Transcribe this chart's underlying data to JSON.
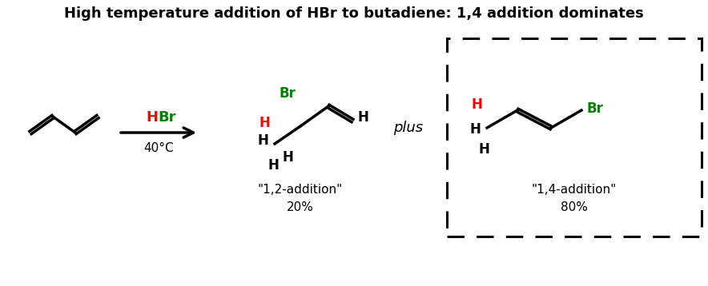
{
  "title": "High temperature addition of HBr to butadiene: 1,4 addition dominates",
  "title_fontsize": 13,
  "background_color": "#ffffff",
  "text_color": "#000000",
  "red_color": "#ff0000",
  "green_color": "#008000",
  "label_12": "\"1,2-addition\"",
  "label_14": "\"1,4-addition\"",
  "pct_12": "20%",
  "pct_14": "80%",
  "plus_text": "plus",
  "condition": "40°C"
}
